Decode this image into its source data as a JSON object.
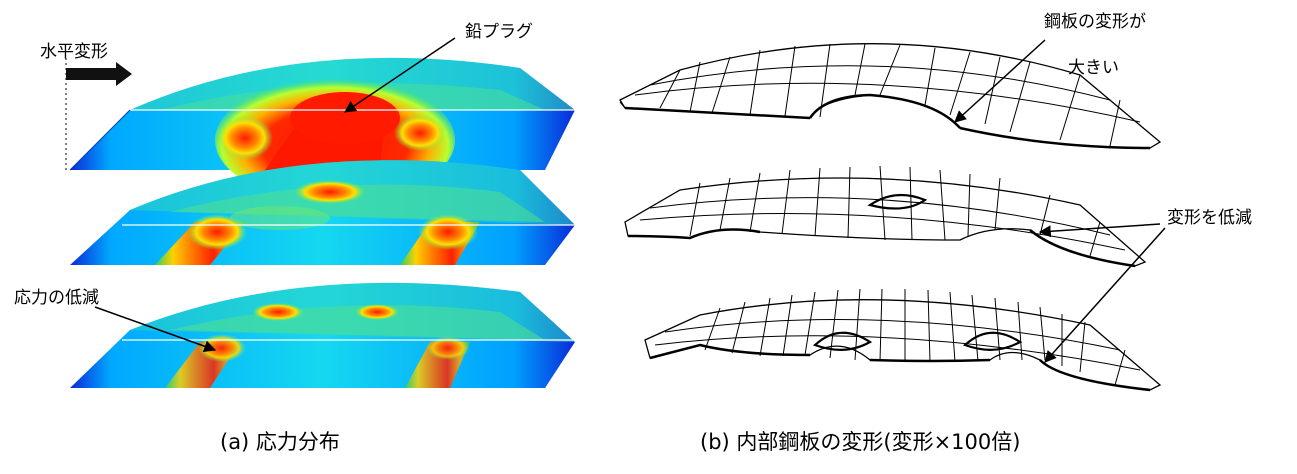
{
  "panel_a": {
    "caption": "(a) 応力分布",
    "labels": {
      "horizontal_deformation": "水平変形",
      "lead_plug": "鉛プラグ",
      "stress_reduction": "応力の低減"
    },
    "colors": {
      "stress_high": "#ff1a00",
      "stress_mid": "#ffd000",
      "stress_low_mid": "#22dd55",
      "stress_low": "#00c8ff",
      "stress_base": "#0090ff",
      "stress_min": "#0a2ad8"
    }
  },
  "panel_b": {
    "caption": "(b) 内部鋼板の変形(変形×100倍)",
    "labels": {
      "large_deformation_line1": "鋼板の変形が",
      "large_deformation_line2": "大きい",
      "deformation_reduced": "変形を低減"
    }
  }
}
